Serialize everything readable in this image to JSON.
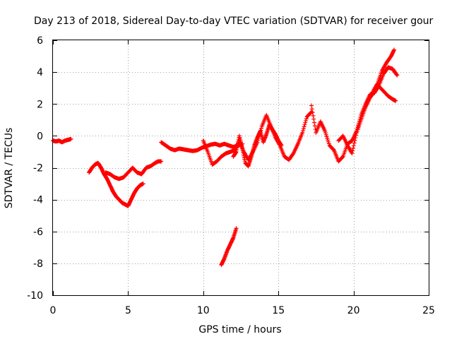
{
  "chart_data": {
    "type": "scatter",
    "title": "Day 213 of 2018, Sidereal Day-to-day VTEC variation (SDTVAR) for receiver gour",
    "xlabel": "GPS time / hours",
    "ylabel": "SDTVAR / TECUs",
    "xlim": [
      0,
      25
    ],
    "ylim": [
      -10,
      6
    ],
    "xticks": [
      0,
      5,
      10,
      15,
      20,
      25
    ],
    "yticks": [
      -10,
      -8,
      -6,
      -4,
      -2,
      0,
      2,
      4,
      6
    ],
    "grid": true,
    "marker": "+",
    "series": [
      {
        "name": "SDTVAR",
        "color": "#ff0000",
        "x": [
          0.0,
          0.2,
          0.4,
          0.6,
          0.8,
          1.0,
          1.2
        ],
        "y": [
          -0.3,
          -0.35,
          -0.3,
          -0.4,
          -0.3,
          -0.25,
          -0.2
        ]
      },
      {
        "name": "SDTVAR",
        "color": "#ff0000",
        "x": [
          2.4,
          2.6,
          2.8,
          3.0,
          3.2,
          3.4,
          3.6,
          3.8,
          4.0,
          4.2,
          4.4,
          4.6,
          4.8,
          5.0,
          5.2,
          5.4,
          5.6,
          5.8,
          6.0
        ],
        "y": [
          -2.3,
          -2.0,
          -1.8,
          -1.7,
          -2.0,
          -2.4,
          -2.7,
          -3.1,
          -3.5,
          -3.8,
          -4.0,
          -4.2,
          -4.3,
          -4.4,
          -4.0,
          -3.6,
          -3.3,
          -3.1,
          -3.0
        ]
      },
      {
        "name": "SDTVAR",
        "color": "#ff0000",
        "x": [
          3.5,
          3.8,
          4.1,
          4.4,
          4.7,
          5.0,
          5.3,
          5.6,
          5.9,
          6.2,
          6.5,
          6.8,
          7.0,
          7.2
        ],
        "y": [
          -2.3,
          -2.4,
          -2.6,
          -2.7,
          -2.6,
          -2.3,
          -2.0,
          -2.3,
          -2.4,
          -2.0,
          -1.9,
          -1.7,
          -1.6,
          -1.6
        ]
      },
      {
        "name": "SDTVAR",
        "color": "#ff0000",
        "x": [
          7.2,
          7.5,
          7.8,
          8.1,
          8.4,
          8.7,
          9.0,
          9.3,
          9.6,
          9.9,
          10.2,
          10.5,
          10.8,
          11.1,
          11.4,
          11.7,
          12.0,
          12.3,
          12.6
        ],
        "y": [
          -0.4,
          -0.6,
          -0.8,
          -0.9,
          -0.8,
          -0.85,
          -0.9,
          -0.95,
          -0.9,
          -0.75,
          -0.65,
          -0.55,
          -0.5,
          -0.6,
          -0.5,
          -0.6,
          -0.7,
          -0.6,
          -0.5
        ]
      },
      {
        "name": "SDTVAR",
        "color": "#ff0000",
        "x": [
          10.0,
          10.3,
          10.6,
          10.9,
          11.2,
          11.5,
          11.8,
          12.1,
          12.4,
          12.7,
          13.0,
          13.3,
          13.6,
          13.9,
          14.2,
          14.5,
          14.8,
          15.1,
          15.4,
          15.7,
          16.0,
          16.3,
          16.6,
          16.9,
          17.2
        ],
        "y": [
          -0.3,
          -1.0,
          -1.8,
          -1.6,
          -1.3,
          -1.1,
          -1.0,
          -0.9,
          -0.3,
          -1.0,
          -1.5,
          -1.0,
          -0.4,
          0.6,
          1.3,
          0.6,
          -0.1,
          -0.6,
          -1.3,
          -1.5,
          -1.1,
          -0.5,
          0.2,
          1.2,
          1.5
        ]
      },
      {
        "name": "SDTVAR",
        "color": "#ff0000",
        "x": [
          12.0,
          12.2,
          12.4,
          12.6,
          12.8,
          13.0,
          13.2,
          13.4,
          13.6,
          13.8,
          14.0,
          14.2,
          14.4,
          14.6,
          14.8,
          15.0,
          15.2
        ],
        "y": [
          -1.3,
          -1.0,
          0.0,
          -0.8,
          -1.7,
          -1.9,
          -1.3,
          -0.6,
          -0.1,
          0.3,
          -0.4,
          0.1,
          0.7,
          0.4,
          0.1,
          -0.3,
          -0.6
        ]
      },
      {
        "name": "SDTVAR",
        "color": "#ff0000",
        "x": [
          11.2,
          11.4,
          11.6,
          11.8,
          12.0,
          12.2
        ],
        "y": [
          -8.1,
          -7.7,
          -7.2,
          -6.8,
          -6.4,
          -5.8
        ]
      },
      {
        "name": "SDTVAR",
        "color": "#ff0000",
        "x": [
          17.2,
          17.5,
          17.8,
          18.1,
          18.4,
          18.7,
          19.0,
          19.3,
          19.6,
          19.9,
          20.2,
          20.5,
          20.8,
          21.1,
          21.4,
          21.7,
          22.0,
          22.3,
          22.6,
          22.9
        ],
        "y": [
          1.9,
          0.2,
          0.9,
          0.3,
          -0.6,
          -0.9,
          -1.6,
          -1.3,
          -0.5,
          -0.3,
          0.3,
          1.3,
          2.0,
          2.6,
          2.7,
          3.2,
          3.9,
          4.3,
          4.2,
          3.8
        ]
      },
      {
        "name": "SDTVAR",
        "color": "#ff0000",
        "x": [
          19.0,
          19.3,
          19.6,
          19.9,
          20.2,
          20.5,
          20.8,
          21.1,
          21.4,
          21.7,
          22.0,
          22.3,
          22.6,
          22.8
        ],
        "y": [
          -0.3,
          0.0,
          -0.6,
          -1.1,
          0.2,
          1.0,
          1.8,
          2.4,
          2.8,
          3.1,
          2.8,
          2.5,
          2.3,
          2.2
        ]
      },
      {
        "name": "SDTVAR",
        "color": "#ff0000",
        "x": [
          21.3,
          21.6,
          21.9,
          22.2,
          22.5,
          22.7
        ],
        "y": [
          2.8,
          3.3,
          4.1,
          4.6,
          5.0,
          5.4
        ]
      }
    ]
  }
}
